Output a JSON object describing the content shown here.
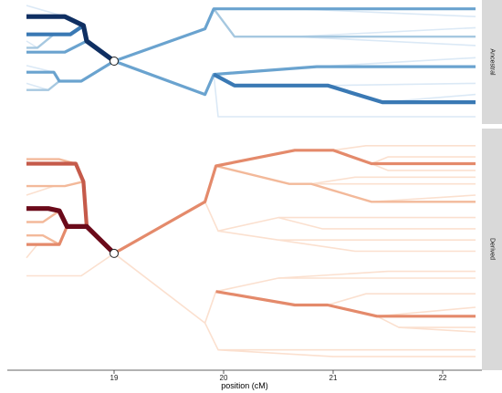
{
  "chart_data": {
    "type": "line",
    "title": "",
    "xlabel": "position (cM)",
    "ylabel": "",
    "xlim": [
      18.2,
      22.3
    ],
    "x_ticks": [
      19,
      20,
      21,
      22
    ],
    "x_tick_labels": [
      "19",
      "20",
      "21",
      "22"
    ],
    "grid": false,
    "legend": "none",
    "focal_position": 19.0,
    "panels": [
      {
        "label": "Ancestral",
        "palette": [
          "#dbe9f6",
          "#a6c8e0",
          "#6aa3cf",
          "#3a79b4",
          "#0f2f62"
        ],
        "segments": [
          {
            "path": [
              [
                19.0,
                0.5
              ],
              [
                19.83,
                0.21
              ],
              [
                19.91,
                0.03
              ],
              [
                22.3,
                0.03
              ]
            ],
            "level": 2
          },
          {
            "path": [
              [
                19.91,
                0.03
              ],
              [
                20.65,
                0.03
              ],
              [
                22.3,
                0.1
              ]
            ],
            "level": 0
          },
          {
            "path": [
              [
                19.91,
                0.03
              ],
              [
                20.1,
                0.28
              ],
              [
                20.65,
                0.28
              ],
              [
                22.3,
                0.28
              ]
            ],
            "level": 1
          },
          {
            "path": [
              [
                20.65,
                0.28
              ],
              [
                22.3,
                0.2
              ]
            ],
            "level": 0
          },
          {
            "path": [
              [
                20.65,
                0.28
              ],
              [
                22.3,
                0.36
              ]
            ],
            "level": 0
          },
          {
            "path": [
              [
                19.0,
                0.5
              ],
              [
                19.83,
                0.8
              ],
              [
                19.91,
                0.62
              ],
              [
                20.85,
                0.55
              ],
              [
                22.3,
                0.55
              ]
            ],
            "level": 2
          },
          {
            "path": [
              [
                20.85,
                0.55
              ],
              [
                22.3,
                0.47
              ]
            ],
            "level": 0
          },
          {
            "path": [
              [
                19.91,
                0.62
              ],
              [
                20.1,
                0.72
              ],
              [
                20.95,
                0.72
              ],
              [
                21.45,
                0.87
              ],
              [
                22.3,
                0.87
              ]
            ],
            "level": 3
          },
          {
            "path": [
              [
                20.95,
                0.72
              ],
              [
                22.3,
                0.7
              ]
            ],
            "level": 0
          },
          {
            "path": [
              [
                21.45,
                0.87
              ],
              [
                22.3,
                0.8
              ]
            ],
            "level": 0
          },
          {
            "path": [
              [
                19.91,
                0.62
              ],
              [
                19.95,
                1.0
              ],
              [
                22.3,
                1.0
              ]
            ],
            "level": 0
          },
          {
            "path": [
              [
                19.0,
                0.5
              ],
              [
                18.75,
                0.32
              ],
              [
                18.72,
                0.18
              ],
              [
                18.55,
                0.1
              ],
              [
                18.2,
                0.1
              ]
            ],
            "level": 4
          },
          {
            "path": [
              [
                18.55,
                0.1
              ],
              [
                18.2,
                0.0
              ]
            ],
            "level": 0
          },
          {
            "path": [
              [
                18.72,
                0.18
              ],
              [
                18.6,
                0.26
              ],
              [
                18.45,
                0.26
              ],
              [
                18.2,
                0.26
              ]
            ],
            "level": 3
          },
          {
            "path": [
              [
                18.45,
                0.26
              ],
              [
                18.3,
                0.38
              ],
              [
                18.2,
                0.38
              ]
            ],
            "level": 1
          },
          {
            "path": [
              [
                18.3,
                0.38
              ],
              [
                18.2,
                0.32
              ]
            ],
            "level": 0
          },
          {
            "path": [
              [
                18.75,
                0.32
              ],
              [
                18.55,
                0.42
              ],
              [
                18.45,
                0.42
              ],
              [
                18.2,
                0.42
              ]
            ],
            "level": 2
          },
          {
            "path": [
              [
                19.0,
                0.5
              ],
              [
                18.7,
                0.68
              ],
              [
                18.5,
                0.68
              ],
              [
                18.45,
                0.6
              ],
              [
                18.2,
                0.6
              ]
            ],
            "level": 2
          },
          {
            "path": [
              [
                18.45,
                0.6
              ],
              [
                18.2,
                0.54
              ]
            ],
            "level": 0
          },
          {
            "path": [
              [
                18.5,
                0.68
              ],
              [
                18.4,
                0.76
              ],
              [
                18.2,
                0.76
              ]
            ],
            "level": 1
          },
          {
            "path": [
              [
                18.4,
                0.76
              ],
              [
                18.2,
                0.7
              ]
            ],
            "level": 0
          }
        ]
      },
      {
        "label": "Derived",
        "palette": [
          "#fbe0cf",
          "#f3b99a",
          "#e48a6b",
          "#c55a4a",
          "#6b0a1a"
        ],
        "segments": [
          {
            "path": [
              [
                19.0,
                0.52
              ],
              [
                19.83,
                0.29
              ],
              [
                19.93,
                0.13
              ],
              [
                20.65,
                0.06
              ],
              [
                21.0,
                0.06
              ],
              [
                21.35,
                0.12
              ],
              [
                22.3,
                0.12
              ]
            ],
            "level": 2
          },
          {
            "path": [
              [
                21.0,
                0.06
              ],
              [
                21.3,
                0.04
              ],
              [
                22.3,
                0.04
              ]
            ],
            "level": 0
          },
          {
            "path": [
              [
                21.35,
                0.12
              ],
              [
                21.5,
                0.09
              ],
              [
                22.3,
                0.09
              ]
            ],
            "level": 0
          },
          {
            "path": [
              [
                21.35,
                0.12
              ],
              [
                21.5,
                0.15
              ],
              [
                22.3,
                0.15
              ]
            ],
            "level": 0
          },
          {
            "path": [
              [
                19.93,
                0.13
              ],
              [
                20.6,
                0.21
              ],
              [
                20.8,
                0.21
              ],
              [
                21.35,
                0.29
              ],
              [
                22.3,
                0.29
              ]
            ],
            "level": 1
          },
          {
            "path": [
              [
                20.8,
                0.21
              ],
              [
                21.3,
                0.21
              ],
              [
                22.3,
                0.21
              ]
            ],
            "level": 0
          },
          {
            "path": [
              [
                21.35,
                0.29
              ],
              [
                22.3,
                0.26
              ]
            ],
            "level": 0
          },
          {
            "path": [
              [
                20.8,
                0.21
              ],
              [
                21.2,
                0.18
              ],
              [
                22.3,
                0.18
              ]
            ],
            "level": 0
          },
          {
            "path": [
              [
                19.83,
                0.29
              ],
              [
                19.95,
                0.42
              ],
              [
                20.5,
                0.36
              ],
              [
                22.3,
                0.36
              ]
            ],
            "level": 0
          },
          {
            "path": [
              [
                20.5,
                0.36
              ],
              [
                20.9,
                0.41
              ],
              [
                22.3,
                0.41
              ]
            ],
            "level": 0
          },
          {
            "path": [
              [
                19.95,
                0.42
              ],
              [
                20.5,
                0.46
              ],
              [
                22.3,
                0.46
              ]
            ],
            "level": 0
          },
          {
            "path": [
              [
                20.5,
                0.46
              ],
              [
                21.2,
                0.51
              ],
              [
                22.3,
                0.51
              ]
            ],
            "level": 0
          },
          {
            "path": [
              [
                19.0,
                0.52
              ],
              [
                19.83,
                0.83
              ],
              [
                19.93,
                0.69
              ],
              [
                20.5,
                0.63
              ],
              [
                22.3,
                0.63
              ]
            ],
            "level": 0
          },
          {
            "path": [
              [
                20.5,
                0.63
              ],
              [
                21.5,
                0.6
              ],
              [
                22.3,
                0.6
              ]
            ],
            "level": 0
          },
          {
            "path": [
              [
                19.93,
                0.69
              ],
              [
                20.65,
                0.75
              ],
              [
                20.95,
                0.75
              ],
              [
                21.4,
                0.8
              ],
              [
                22.3,
                0.8
              ]
            ],
            "level": 2
          },
          {
            "path": [
              [
                20.95,
                0.75
              ],
              [
                21.3,
                0.7
              ],
              [
                22.3,
                0.7
              ]
            ],
            "level": 0
          },
          {
            "path": [
              [
                21.4,
                0.8
              ],
              [
                22.3,
                0.76
              ]
            ],
            "level": 0
          },
          {
            "path": [
              [
                21.4,
                0.8
              ],
              [
                21.6,
                0.85
              ],
              [
                22.3,
                0.85
              ]
            ],
            "level": 0
          },
          {
            "path": [
              [
                21.6,
                0.85
              ],
              [
                22.3,
                0.87
              ]
            ],
            "level": 0
          },
          {
            "path": [
              [
                19.83,
                0.83
              ],
              [
                19.95,
                0.95
              ],
              [
                22.3,
                0.95
              ]
            ],
            "level": 0
          },
          {
            "path": [
              [
                19.95,
                0.95
              ],
              [
                21.0,
                0.98
              ],
              [
                22.3,
                0.98
              ]
            ],
            "level": 0
          },
          {
            "path": [
              [
                19.0,
                0.52
              ],
              [
                18.75,
                0.4
              ],
              [
                18.57,
                0.4
              ],
              [
                18.5,
                0.33
              ],
              [
                18.4,
                0.32
              ],
              [
                18.2,
                0.32
              ]
            ],
            "level": 4
          },
          {
            "path": [
              [
                18.75,
                0.4
              ],
              [
                18.72,
                0.2
              ],
              [
                18.65,
                0.12
              ],
              [
                18.45,
                0.12
              ],
              [
                18.2,
                0.12
              ]
            ],
            "level": 3
          },
          {
            "path": [
              [
                18.65,
                0.12
              ],
              [
                18.5,
                0.1
              ],
              [
                18.2,
                0.1
              ]
            ],
            "level": 1
          },
          {
            "path": [
              [
                18.72,
                0.2
              ],
              [
                18.55,
                0.22
              ],
              [
                18.45,
                0.22
              ],
              [
                18.2,
                0.22
              ]
            ],
            "level": 1
          },
          {
            "path": [
              [
                18.45,
                0.22
              ],
              [
                18.2,
                0.26
              ]
            ],
            "level": 0
          },
          {
            "path": [
              [
                18.5,
                0.33
              ],
              [
                18.35,
                0.38
              ],
              [
                18.2,
                0.38
              ]
            ],
            "level": 1
          },
          {
            "path": [
              [
                18.57,
                0.4
              ],
              [
                18.5,
                0.48
              ],
              [
                18.3,
                0.48
              ],
              [
                18.2,
                0.48
              ]
            ],
            "level": 2
          },
          {
            "path": [
              [
                18.5,
                0.48
              ],
              [
                18.35,
                0.44
              ],
              [
                18.2,
                0.44
              ]
            ],
            "level": 1
          },
          {
            "path": [
              [
                18.3,
                0.48
              ],
              [
                18.2,
                0.54
              ]
            ],
            "level": 0
          },
          {
            "path": [
              [
                19.0,
                0.52
              ],
              [
                18.7,
                0.62
              ],
              [
                18.2,
                0.62
              ]
            ],
            "level": 0
          }
        ]
      }
    ]
  }
}
